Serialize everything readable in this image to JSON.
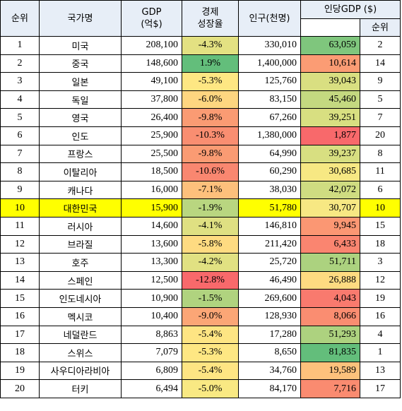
{
  "headers": {
    "rank": "순위",
    "country": "국가명",
    "gdp_line1": "GDP",
    "gdp_line2": "(억$)",
    "growth_line1": "경제",
    "growth_line2": "성장율",
    "population": "인구(천명)",
    "gdp_per_capita": "인당GDP ($)",
    "per_capita_rank": "순위"
  },
  "rows": [
    {
      "rank": "1",
      "country": "미국",
      "gdp": "208,100",
      "growth": "-4.3%",
      "growth_color": "#e3e182",
      "population": "330,010",
      "pc": "63,059",
      "pc_color": "#7fc67d",
      "pc_rank": "2"
    },
    {
      "rank": "2",
      "country": "중국",
      "gdp": "148,600",
      "growth": "1.9%",
      "growth_color": "#63be7b",
      "population": "1,400,000",
      "pc": "10,614",
      "pc_color": "#fb9c74",
      "pc_rank": "14"
    },
    {
      "rank": "3",
      "country": "일본",
      "gdp": "49,100",
      "growth": "-5.3%",
      "growth_color": "#fee783",
      "population": "125,760",
      "pc": "39,043",
      "pc_color": "#d9df81",
      "pc_rank": "9"
    },
    {
      "rank": "4",
      "country": "독일",
      "gdp": "37,800",
      "growth": "-6.0%",
      "growth_color": "#fed680",
      "population": "83,150",
      "pc": "45,460",
      "pc_color": "#c4d980",
      "pc_rank": "5"
    },
    {
      "rank": "5",
      "country": "영국",
      "gdp": "26,400",
      "growth": "-9.8%",
      "growth_color": "#fa9b73",
      "population": "67,260",
      "pc": "39,251",
      "pc_color": "#d8df81",
      "pc_rank": "7"
    },
    {
      "rank": "6",
      "country": "인도",
      "gdp": "25,900",
      "growth": "-10.3%",
      "growth_color": "#f98e71",
      "population": "1,380,000",
      "pc": "1,877",
      "pc_color": "#f8696b",
      "pc_rank": "20"
    },
    {
      "rank": "7",
      "country": "프랑스",
      "gdp": "25,500",
      "growth": "-9.8%",
      "growth_color": "#fa9b73",
      "population": "64,990",
      "pc": "39,237",
      "pc_color": "#d8df81",
      "pc_rank": "8"
    },
    {
      "rank": "8",
      "country": "이탈리아",
      "gdp": "18,500",
      "growth": "-10.6%",
      "growth_color": "#f98770",
      "population": "60,290",
      "pc": "30,685",
      "pc_color": "#f7e883",
      "pc_rank": "11"
    },
    {
      "rank": "9",
      "country": "캐나다",
      "gdp": "16,000",
      "growth": "-7.1%",
      "growth_color": "#fdc07c",
      "population": "38,030",
      "pc": "42,072",
      "pc_color": "#cfdc81",
      "pc_rank": "6"
    },
    {
      "rank": "10",
      "country": "대한민국",
      "gdp": "15,900",
      "growth": "-1.9%",
      "growth_color": "#b9d680",
      "population": "51,780",
      "pc": "30,707",
      "pc_color": "#f7e883",
      "pc_rank": "10",
      "highlight": true
    },
    {
      "rank": "11",
      "country": "러시아",
      "gdp": "14,600",
      "growth": "-4.1%",
      "growth_color": "#dfe082",
      "population": "146,810",
      "pc": "9,945",
      "pc_color": "#fb9773",
      "pc_rank": "15"
    },
    {
      "rank": "12",
      "country": "브라질",
      "gdp": "13,600",
      "growth": "-5.8%",
      "growth_color": "#fedb81",
      "population": "211,420",
      "pc": "6,433",
      "pc_color": "#fa8570",
      "pc_rank": "18"
    },
    {
      "rank": "13",
      "country": "호주",
      "gdp": "13,300",
      "growth": "-4.2%",
      "growth_color": "#e1e182",
      "population": "25,720",
      "pc": "51,711",
      "pc_color": "#acd27f",
      "pc_rank": "3"
    },
    {
      "rank": "14",
      "country": "스페인",
      "gdp": "12,500",
      "growth": "-12.8%",
      "growth_color": "#f8696b",
      "population": "46,490",
      "pc": "26,888",
      "pc_color": "#fedb81",
      "pc_rank": "12"
    },
    {
      "rank": "15",
      "country": "인도네시아",
      "gdp": "10,900",
      "growth": "-1.5%",
      "growth_color": "#b0d37f",
      "population": "269,600",
      "pc": "4,043",
      "pc_color": "#f97a6e",
      "pc_rank": "19"
    },
    {
      "rank": "16",
      "country": "멕시코",
      "gdp": "10,400",
      "growth": "-9.0%",
      "growth_color": "#fba676",
      "population": "128,930",
      "pc": "8,066",
      "pc_color": "#fa8d71",
      "pc_rank": "16"
    },
    {
      "rank": "17",
      "country": "네덜란드",
      "gdp": "8,863",
      "growth": "-5.4%",
      "growth_color": "#fee583",
      "population": "17,280",
      "pc": "51,293",
      "pc_color": "#add27f",
      "pc_rank": "4"
    },
    {
      "rank": "18",
      "country": "스위스",
      "gdp": "7,079",
      "growth": "-5.3%",
      "growth_color": "#fee783",
      "population": "8,650",
      "pc": "81,835",
      "pc_color": "#63be7b",
      "pc_rank": "1"
    },
    {
      "rank": "19",
      "country": "사우디아라비아",
      "gdp": "6,809",
      "growth": "-5.4%",
      "growth_color": "#fee583",
      "population": "34,760",
      "pc": "19,589",
      "pc_color": "#fdc17c",
      "pc_rank": "13"
    },
    {
      "rank": "20",
      "country": "터키",
      "gdp": "6,494",
      "growth": "-5.0%",
      "growth_color": "#f9e983",
      "population": "84,170",
      "pc": "7,716",
      "pc_color": "#fa8b70",
      "pc_rank": "17"
    }
  ],
  "highlight_color": "#ffff00",
  "header_bg": "#e7eef7"
}
